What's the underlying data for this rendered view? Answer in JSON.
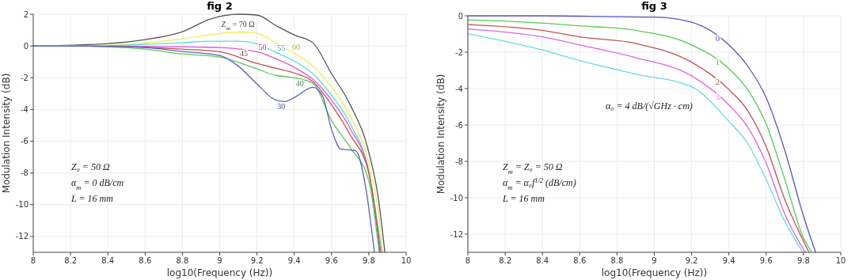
{
  "chart_data": [
    {
      "type": "line",
      "title": "fig 2",
      "xlabel": "log10(Frequency (Hz))",
      "ylabel": "Modulation Intensity (dB)",
      "xlim": [
        8,
        10
      ],
      "ylim": [
        -13,
        2
      ],
      "xticks": [
        8,
        8.2,
        8.4,
        8.6,
        8.8,
        9,
        9.2,
        9.4,
        9.6,
        9.8,
        10
      ],
      "yticks": [
        2,
        0,
        -2,
        -4,
        -6,
        -8,
        -10,
        -12
      ],
      "grid": true,
      "legend": false,
      "marker": "none",
      "line_style": "solid",
      "annotations": [
        "Z₀ = 50 Ω",
        "α$_{m}$ = 0 dB/cm",
        "L = 16 mm"
      ],
      "series": [
        {
          "name": "Z$_{m}$ = 70 Ω",
          "color": "#555555",
          "x": [
            8,
            8.2,
            8.4,
            8.6,
            8.8,
            8.95,
            9.1,
            9.2,
            9.3,
            9.4,
            9.5,
            9.6,
            9.7,
            9.8,
            9.85,
            9.886
          ],
          "values": [
            0,
            0.05,
            0.15,
            0.4,
            0.9,
            1.7,
            2,
            1.95,
            1.3,
            0.7,
            0.2,
            -1.75,
            -3.7,
            -6.7,
            -9.5,
            -13
          ]
        },
        {
          "name": "60",
          "color": "#eeee55",
          "x": [
            8,
            8.2,
            8.4,
            8.6,
            8.8,
            8.95,
            9.1,
            9.2,
            9.3,
            9.4,
            9.5,
            9.6,
            9.7,
            9.8,
            9.85,
            9.875
          ],
          "values": [
            0,
            0.02,
            0.05,
            0.2,
            0.45,
            0.7,
            0.88,
            0.8,
            0.2,
            -0.45,
            -1.25,
            -2.6,
            -4.4,
            -7.4,
            -10.3,
            -13
          ]
        },
        {
          "name": "55",
          "color": "#55dddd",
          "x": [
            8,
            8.2,
            8.4,
            8.6,
            8.8,
            8.95,
            9.1,
            9.2,
            9.3,
            9.4,
            9.5,
            9.6,
            9.7,
            9.8,
            9.87
          ],
          "values": [
            0,
            0.01,
            0.03,
            0.1,
            0.2,
            0.3,
            0.3,
            0.13,
            -0.4,
            -0.95,
            -1.75,
            -3.1,
            -4.9,
            -7.9,
            -13
          ]
        },
        {
          "name": "50",
          "color": "#dd55dd",
          "x": [
            8.4,
            8.6,
            8.8,
            9,
            9.2,
            9.3,
            9.4,
            9.5,
            9.6,
            9.7,
            9.8,
            9.865
          ],
          "values": [
            0,
            -0.02,
            -0.05,
            -0.1,
            -0.36,
            -0.8,
            -1.35,
            -2.1,
            -3.4,
            -5.2,
            -8,
            -13
          ]
        },
        {
          "name": "45",
          "color": "#c05050",
          "x": [
            8.4,
            8.6,
            8.8,
            9,
            9.2,
            9.3,
            9.4,
            9.5,
            9.6,
            9.7,
            9.8,
            9.86
          ],
          "values": [
            -0.02,
            -0.08,
            -0.2,
            -0.36,
            -1.1,
            -1.4,
            -1.7,
            -2.25,
            -3.7,
            -5.6,
            -8,
            -13
          ]
        },
        {
          "name": "40",
          "color": "#55cc55",
          "x": [
            8,
            8.2,
            8.4,
            8.6,
            8.8,
            9,
            9.2,
            9.3,
            9.4,
            9.5,
            9.6,
            9.7,
            9.8,
            9.855
          ],
          "values": [
            0,
            0,
            -0.05,
            -0.2,
            -0.5,
            -0.7,
            -1.45,
            -1.85,
            -2,
            -2.35,
            -4.7,
            -6.4,
            -8.5,
            -13
          ]
        },
        {
          "name": "30",
          "color": "#6060c0",
          "x": [
            8,
            8.2,
            8.4,
            8.6,
            8.8,
            9,
            9.1,
            9.2,
            9.3,
            9.35,
            9.4,
            9.5,
            9.55,
            9.6,
            9.65,
            9.7,
            9.73,
            9.78,
            9.83
          ],
          "values": [
            0,
            0,
            -0.03,
            -0.1,
            -0.35,
            -0.6,
            -1.27,
            -2.4,
            -3.4,
            -3.5,
            -3.25,
            -2.6,
            -3.1,
            -5.25,
            -6.5,
            -6.55,
            -6.6,
            -8.7,
            -13
          ]
        }
      ]
    },
    {
      "type": "line",
      "title": "fig 3",
      "xlabel": "log10(Frequency (Hz))",
      "ylabel": "Modulation Intensity (dB)",
      "xlim": [
        8,
        10
      ],
      "ylim": [
        -13,
        0
      ],
      "xticks": [
        8,
        8.2,
        8.4,
        8.6,
        8.8,
        9,
        9.2,
        9.4,
        9.6,
        9.8,
        10
      ],
      "yticks": [
        0,
        -2,
        -4,
        -6,
        -8,
        -10,
        -12
      ],
      "grid": true,
      "legend": false,
      "marker": "none",
      "line_style": "solid",
      "annotations": [
        "α₀ = 4 dB/(√GHz · cm)",
        "Z$_{m}$ = Z₀ = 50 Ω",
        "α$_{m}$ = α₀f$^{1/2}$ (dB/cm)",
        "L = 16 mm"
      ],
      "series": [
        {
          "name": "0",
          "color": "#5555bb",
          "x": [
            8,
            8.4,
            8.8,
            9,
            9.2,
            9.4,
            9.5,
            9.6,
            9.7,
            9.8,
            9.865
          ],
          "values": [
            0,
            0,
            -0.05,
            -0.07,
            -0.35,
            -1.6,
            -2.75,
            -4.5,
            -7.4,
            -11,
            -13
          ]
        },
        {
          "name": "1",
          "color": "#55cc55",
          "x": [
            8,
            8.4,
            8.6,
            8.9,
            9.2,
            9.4,
            9.5,
            9.6,
            9.7,
            9.8,
            9.846
          ],
          "values": [
            -0.22,
            -0.4,
            -0.55,
            -0.8,
            -1.6,
            -2.9,
            -4.05,
            -5.95,
            -9,
            -12.2,
            -13
          ]
        },
        {
          "name": "2",
          "color": "#c05050",
          "x": [
            8,
            8.4,
            8.6,
            8.9,
            9.2,
            9.4,
            9.5,
            9.6,
            9.7,
            9.83
          ],
          "values": [
            -0.48,
            -0.8,
            -1.16,
            -1.52,
            -2.55,
            -4.05,
            -5.2,
            -7.2,
            -10.1,
            -13
          ]
        },
        {
          "name": "3",
          "color": "#dd66dd",
          "x": [
            8,
            8.4,
            8.6,
            8.9,
            9.2,
            9.4,
            9.5,
            9.6,
            9.7,
            9.81
          ],
          "values": [
            -0.72,
            -1.16,
            -1.6,
            -2.3,
            -3.3,
            -4.9,
            -6.1,
            -8.1,
            -10.9,
            -13
          ]
        },
        {
          "color": "#66dddd",
          "x": [
            8,
            8.4,
            8.6,
            8.9,
            9.2,
            9.4,
            9.5,
            9.6,
            9.7,
            9.797
          ],
          "values": [
            -0.98,
            -1.88,
            -2.46,
            -3.2,
            -3.9,
            -5.8,
            -7,
            -9,
            -11.3,
            -13
          ]
        }
      ]
    }
  ]
}
